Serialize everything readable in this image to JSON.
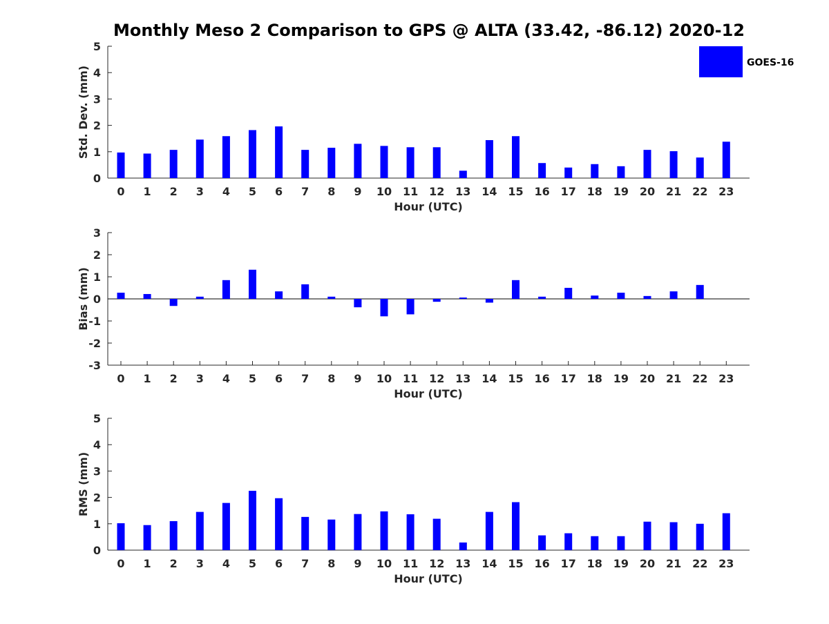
{
  "title": "Monthly Meso 2 Comparison to GPS @ ALTA (33.42, -86.12) 2020-12",
  "legend": {
    "label": "GOES-16",
    "color": "#0000ff"
  },
  "colors": {
    "bar": "#0000ff",
    "axis": "#262626",
    "zero_line": "#000000"
  },
  "chart_data": [
    {
      "type": "bar",
      "title": "Monthly Meso 2 Comparison to GPS @ ALTA (33.42, -86.12) 2020-12",
      "xlabel": "Hour (UTC)",
      "ylabel": "Std. Dev. (mm)",
      "ylim": [
        0,
        5
      ],
      "yticks": [
        0,
        1,
        2,
        3,
        4,
        5
      ],
      "categories": [
        "0",
        "1",
        "2",
        "3",
        "4",
        "5",
        "6",
        "7",
        "8",
        "9",
        "10",
        "11",
        "12",
        "13",
        "14",
        "15",
        "16",
        "17",
        "18",
        "19",
        "20",
        "21",
        "22",
        "23"
      ],
      "series": [
        {
          "name": "GOES-16",
          "values": [
            0.97,
            0.93,
            1.07,
            1.46,
            1.59,
            1.82,
            1.96,
            1.07,
            1.15,
            1.3,
            1.22,
            1.17,
            1.17,
            0.28,
            1.44,
            1.59,
            0.57,
            0.4,
            0.53,
            0.45,
            1.07,
            1.02,
            0.78,
            1.38
          ]
        }
      ],
      "legend_position": "top-right"
    },
    {
      "type": "bar",
      "xlabel": "Hour (UTC)",
      "ylabel": "Bias (mm)",
      "ylim": [
        -3,
        3
      ],
      "yticks": [
        -3,
        -2,
        -1,
        0,
        1,
        2,
        3
      ],
      "categories": [
        "0",
        "1",
        "2",
        "3",
        "4",
        "5",
        "6",
        "7",
        "8",
        "9",
        "10",
        "11",
        "12",
        "13",
        "14",
        "15",
        "16",
        "17",
        "18",
        "19",
        "20",
        "21",
        "22",
        "23"
      ],
      "series": [
        {
          "name": "GOES-16",
          "values": [
            0.28,
            0.22,
            -0.32,
            0.1,
            0.85,
            1.32,
            0.34,
            0.66,
            0.1,
            -0.38,
            -0.79,
            -0.7,
            -0.13,
            0.06,
            -0.17,
            0.85,
            0.1,
            0.5,
            0.15,
            0.28,
            0.13,
            0.34,
            0.63,
            0.0
          ]
        }
      ]
    },
    {
      "type": "bar",
      "xlabel": "Hour (UTC)",
      "ylabel": "RMS (mm)",
      "ylim": [
        0,
        5
      ],
      "yticks": [
        0,
        1,
        2,
        3,
        4,
        5
      ],
      "categories": [
        "0",
        "1",
        "2",
        "3",
        "4",
        "5",
        "6",
        "7",
        "8",
        "9",
        "10",
        "11",
        "12",
        "13",
        "14",
        "15",
        "16",
        "17",
        "18",
        "19",
        "20",
        "21",
        "22",
        "23"
      ],
      "series": [
        {
          "name": "GOES-16",
          "values": [
            1.02,
            0.95,
            1.1,
            1.45,
            1.79,
            2.25,
            1.97,
            1.26,
            1.16,
            1.37,
            1.47,
            1.36,
            1.19,
            0.29,
            1.45,
            1.82,
            0.56,
            0.64,
            0.53,
            0.53,
            1.08,
            1.06,
            1.0,
            1.4
          ]
        }
      ]
    }
  ]
}
